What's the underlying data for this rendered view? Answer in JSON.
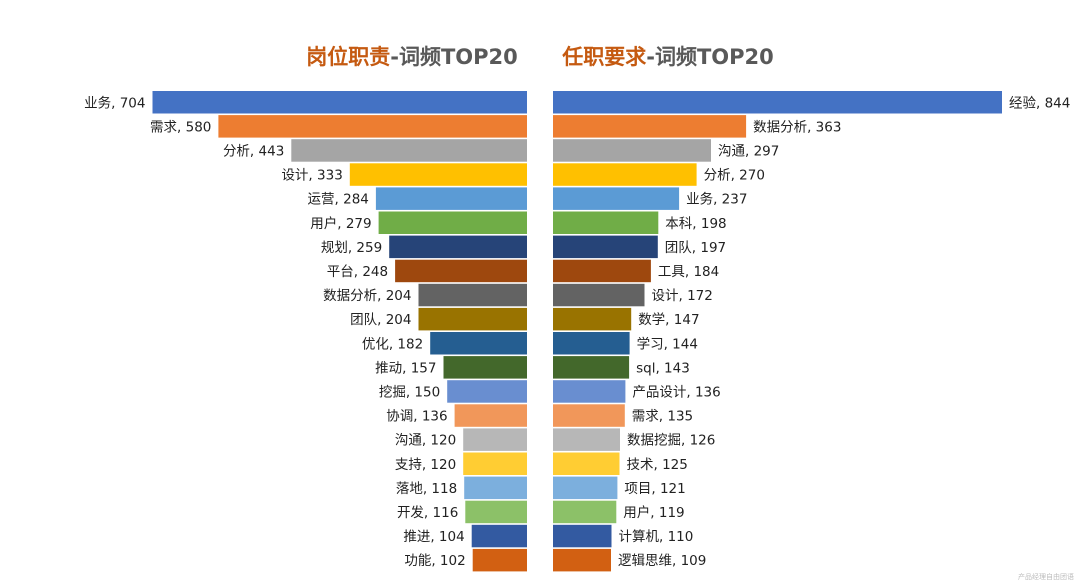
{
  "watermark": "产品经理自由团语",
  "colors": [
    "#4472C4",
    "#ED7D31",
    "#A5A5A5",
    "#FFC000",
    "#5B9BD5",
    "#70AD47",
    "#264478",
    "#9E480E",
    "#636363",
    "#997300",
    "#255E91",
    "#43682B",
    "#698ED0",
    "#F1975A",
    "#B7B7B7",
    "#FFCD33",
    "#7CAFDD",
    "#8CC168",
    "#335AA1",
    "#D26012"
  ],
  "title_accent_color": "#C55A11",
  "title_rest_color": "#595959",
  "chart_data": [
    {
      "type": "bar",
      "orientation": "horizontal",
      "direction": "right-to-left",
      "title": "岗位职责-词频TOP20",
      "title_accent": "岗位职责",
      "title_rest": "-词频TOP20",
      "categories": [
        "业务",
        "需求",
        "分析",
        "设计",
        "运营",
        "用户",
        "规划",
        "平台",
        "数据分析",
        "团队",
        "优化",
        "推动",
        "挖掘",
        "协调",
        "沟通",
        "支持",
        "落地",
        "开发",
        "推进",
        "功能"
      ],
      "values": [
        704,
        580,
        443,
        333,
        284,
        279,
        259,
        248,
        204,
        204,
        182,
        157,
        150,
        136,
        120,
        120,
        118,
        116,
        104,
        102
      ],
      "labels": [
        "业务, 704",
        "需求, 580",
        "分析, 443",
        "设计, 333",
        "运营, 284",
        "用户, 279",
        "规划, 259",
        "平台, 248",
        "数据分析, 204",
        "团队, 204",
        "优化, 182",
        "推动, 157",
        "挖掘, 150",
        "协调, 136",
        "沟通, 120",
        "支持, 120",
        "落地, 118",
        "开发, 116",
        "推进, 104",
        "功能, 102"
      ]
    },
    {
      "type": "bar",
      "orientation": "horizontal",
      "direction": "left-to-right",
      "title": "任职要求-词频TOP20",
      "title_accent": "任职要求",
      "title_rest": "-词频TOP20",
      "categories": [
        "经验",
        "数据分析",
        "沟通",
        "分析",
        "业务",
        "本科",
        "团队",
        "工具",
        "设计",
        "数学",
        "学习",
        "sql",
        "产品设计",
        "需求",
        "数据挖掘",
        "技术",
        "项目",
        "用户",
        "计算机",
        "逻辑思维"
      ],
      "values": [
        844,
        363,
        297,
        270,
        237,
        198,
        197,
        184,
        172,
        147,
        144,
        143,
        136,
        135,
        126,
        125,
        121,
        119,
        110,
        109
      ],
      "labels": [
        "经验, 844",
        "数据分析, 363",
        "沟通, 297",
        "分析, 270",
        "业务, 237",
        "本科, 198",
        "团队, 197",
        "工具, 184",
        "设计, 172",
        "数学, 147",
        "学习, 144",
        "sql, 143",
        "产品设计, 136",
        "需求, 135",
        "数据挖掘, 126",
        "技术, 125",
        "项目, 121",
        "用户, 119",
        "计算机, 110",
        "逻辑思维, 109"
      ]
    }
  ]
}
